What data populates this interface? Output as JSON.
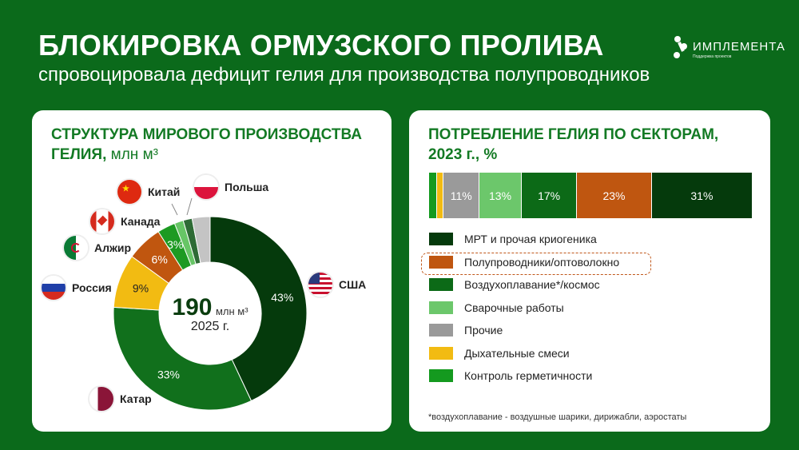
{
  "header": {
    "title": "БЛОКИРОВКА ОРМУЗСКОГО ПРОЛИВА",
    "subtitle": "спровоцировала дефицит гелия для производства полупроводников",
    "logo_name": "ИМПЛЕМЕНТА",
    "logo_tagline": "Поддержка проектов"
  },
  "chart_data": [
    {
      "type": "pie",
      "title": "СТРУКТУРА МИРОВОГО ПРОИЗВОДСТВА ГЕЛИЯ,",
      "title_unit": "млн м³",
      "center": {
        "value": "190",
        "unit": "млн м³",
        "year": "2025 г."
      },
      "slices": [
        {
          "label": "США",
          "value": 43,
          "value_label": "43%",
          "color": "#053a0c"
        },
        {
          "label": "Катар",
          "value": 33,
          "value_label": "33%",
          "color": "#11701c"
        },
        {
          "label": "Россия",
          "value": 9,
          "value_label": "9%",
          "color": "#f2bb12"
        },
        {
          "label": "Алжир",
          "value": 6,
          "value_label": "6%",
          "color": "#c0560f"
        },
        {
          "label": "Канада",
          "value": 3,
          "value_label": "3%",
          "color": "#1d9a22"
        },
        {
          "label": "Китай",
          "value": 1.5,
          "value_label": "",
          "color": "#67c566"
        },
        {
          "label": "Польша",
          "value": 1.5,
          "value_label": "",
          "color": "#2e6b35"
        },
        {
          "label": "",
          "value": 3,
          "value_label": "",
          "color": "#c4c4c4"
        }
      ]
    },
    {
      "type": "bar",
      "title": "ПОТРЕБЛЕНИЕ ГЕЛИЯ ПО СЕКТОРАМ, 2023 г., %",
      "orientation": "stacked-horizontal",
      "segments": [
        {
          "label": "Контроль герметичности",
          "value": 2.5,
          "value_label": "",
          "color": "#149a1f"
        },
        {
          "label": "Дыхательные смеси",
          "value": 2,
          "value_label": "",
          "color": "#f2bb12"
        },
        {
          "label": "Прочие",
          "value": 11,
          "value_label": "11%",
          "color": "#9a9a9a"
        },
        {
          "label": "Сварочные работы",
          "value": 13,
          "value_label": "13%",
          "color": "#6cc76b"
        },
        {
          "label": "Воздухоплавание*/космос",
          "value": 17,
          "value_label": "17%",
          "color": "#0c6a17"
        },
        {
          "label": "Полупроводники/оптоволокно",
          "value": 23,
          "value_label": "23%",
          "color": "#bf5610"
        },
        {
          "label": "МРТ и прочая криогеника",
          "value": 31,
          "value_label": "31%",
          "color": "#053a0c"
        }
      ],
      "legend": [
        "МРТ и прочая криогеника",
        "Полупроводники/оптоволокно",
        "Воздухоплавание*/космос",
        "Сварочные работы",
        "Прочие",
        "Дыхательные смеси",
        "Контроль герметичности"
      ],
      "legend_colors": [
        "#053a0c",
        "#bf5610",
        "#0c6a17",
        "#6cc76b",
        "#9a9a9a",
        "#f2bb12",
        "#149a1f"
      ],
      "highlighted": "Полупроводники/оптоволокно",
      "footnote": "*воздухоплавание -  воздушные шарики, дирижабли, аэростаты"
    }
  ]
}
